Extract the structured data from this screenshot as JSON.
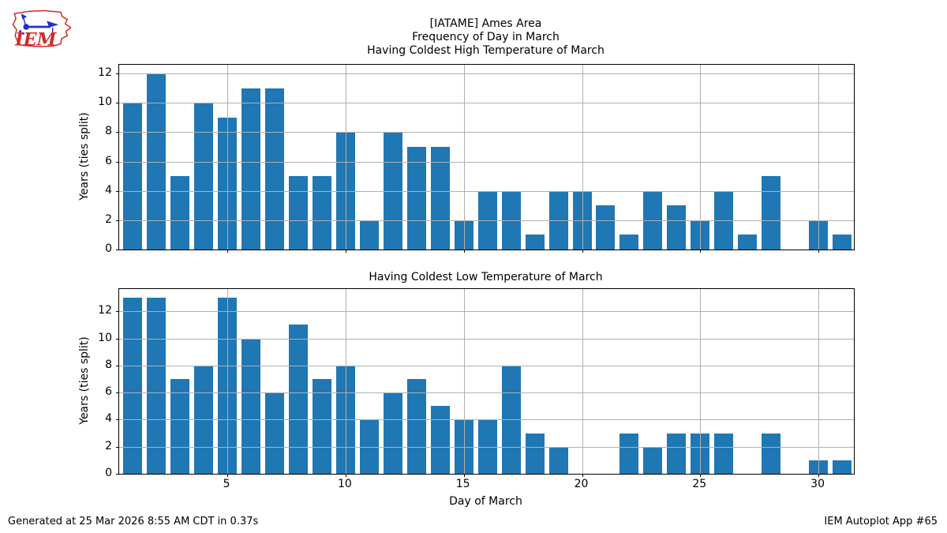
{
  "logo": {
    "text": "IEM"
  },
  "header": {
    "title_lines": [
      "[IATAME] Ames Area",
      "Frequency of Day in March"
    ]
  },
  "footer": {
    "left": "Generated at 25 Mar 2026 8:55 AM CDT in 0.37s",
    "right": "IEM Autoplot App #65"
  },
  "colors": {
    "bar": "#1f77b4",
    "grid": "#b0b0b0",
    "spine": "#000000",
    "logo_red": "#d42a2a",
    "logo_blue": "#2230c8"
  },
  "chart_data": [
    {
      "type": "bar",
      "title": "Having Coldest High Temperature of March",
      "ylabel": "Years (ties split)",
      "xlabel": "",
      "x": [
        1,
        2,
        3,
        4,
        5,
        6,
        7,
        8,
        9,
        10,
        11,
        12,
        13,
        14,
        15,
        16,
        17,
        18,
        19,
        20,
        21,
        22,
        23,
        24,
        25,
        26,
        27,
        28,
        29,
        30,
        31
      ],
      "values": [
        10,
        12,
        5,
        10,
        9,
        11,
        11,
        5,
        5,
        8,
        2,
        8,
        7,
        7,
        2,
        4,
        4,
        1,
        4,
        4,
        3,
        1,
        4,
        3,
        2,
        4,
        1,
        5,
        0,
        2,
        1
      ],
      "yticks": [
        0,
        2,
        4,
        6,
        8,
        10,
        12
      ],
      "xticks": [
        5,
        10,
        15,
        20,
        25,
        30
      ],
      "ylim": [
        0,
        12.6
      ],
      "xlim": [
        0.425,
        31.5
      ],
      "grid": true,
      "legend": "none"
    },
    {
      "type": "bar",
      "title": "Having Coldest Low Temperature of March",
      "ylabel": "Years (ties split)",
      "xlabel": "Day of March",
      "x": [
        1,
        2,
        3,
        4,
        5,
        6,
        7,
        8,
        9,
        10,
        11,
        12,
        13,
        14,
        15,
        16,
        17,
        18,
        19,
        20,
        21,
        22,
        23,
        24,
        25,
        26,
        27,
        28,
        29,
        30,
        31
      ],
      "values": [
        13,
        13,
        7,
        8,
        13,
        10,
        6,
        11,
        7,
        8,
        4,
        6,
        7,
        5,
        4,
        4,
        8,
        3,
        2,
        0,
        0,
        3,
        2,
        3,
        3,
        3,
        0,
        3,
        0,
        1,
        1
      ],
      "yticks": [
        0,
        2,
        4,
        6,
        8,
        10,
        12
      ],
      "xticks": [
        5,
        10,
        15,
        20,
        25,
        30
      ],
      "ylim": [
        0,
        13.65
      ],
      "xlim": [
        0.425,
        31.5
      ],
      "grid": true,
      "legend": "none"
    }
  ]
}
